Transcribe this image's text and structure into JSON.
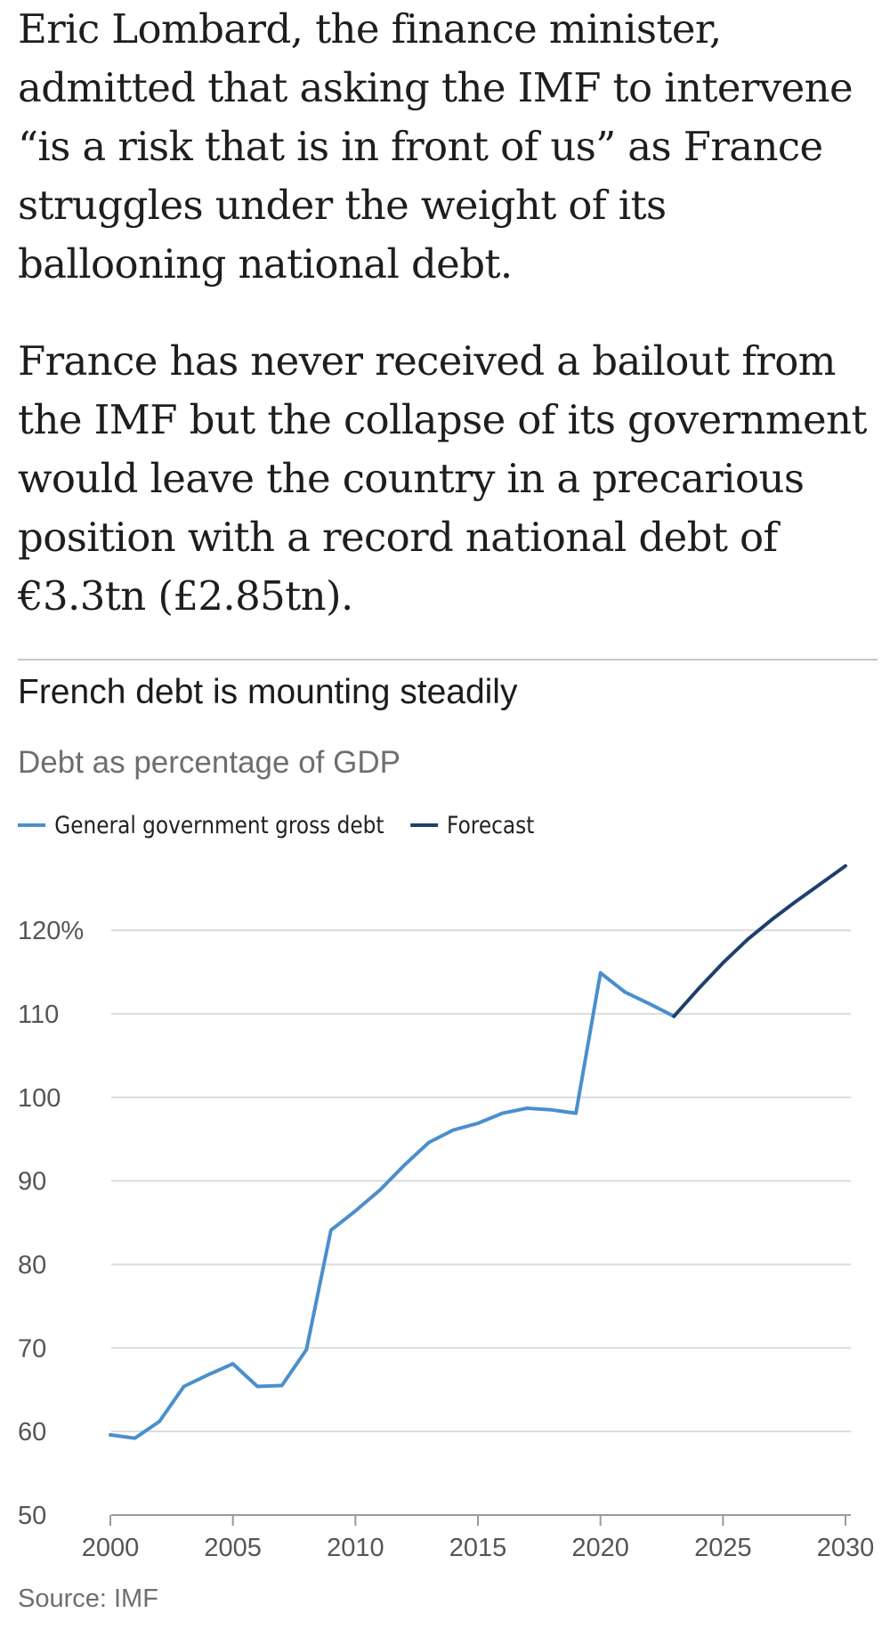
{
  "article": {
    "paragraphs": [
      "Eric Lombard, the finance minister, admitted that asking the IMF to intervene “is a risk that is in front of us” as France struggles under the weight of its ballooning national debt.",
      "France has never received a bailout from the IMF but the collapse of its government would leave the country in a precarious position with a record national debt of €3.3tn (£2.85tn)."
    ]
  },
  "chart_data": {
    "type": "line",
    "title": "French debt is mounting steadily",
    "subtitle": "Debt as percentage of GDP",
    "xlabel": "",
    "ylabel": "",
    "source": "Source: IMF",
    "legend": [
      {
        "name": "General government gross debt",
        "color": "#4a8fce"
      },
      {
        "name": "Forecast",
        "color": "#1e3f6e"
      }
    ],
    "legend_placement": "top-left",
    "grid": true,
    "xlim": [
      2000,
      2030
    ],
    "ylim": [
      50,
      128
    ],
    "x_ticks": [
      {
        "value": 2000,
        "label": "2000"
      },
      {
        "value": 2005,
        "label": "2005"
      },
      {
        "value": 2010,
        "label": "2010"
      },
      {
        "value": 2015,
        "label": "2015"
      },
      {
        "value": 2020,
        "label": "2020"
      },
      {
        "value": 2025,
        "label": "2025"
      },
      {
        "value": 2030,
        "label": "2030"
      }
    ],
    "y_ticks": [
      {
        "value": 50,
        "label": "50"
      },
      {
        "value": 60,
        "label": "60"
      },
      {
        "value": 70,
        "label": "70"
      },
      {
        "value": 80,
        "label": "80"
      },
      {
        "value": 90,
        "label": "90"
      },
      {
        "value": 100,
        "label": "100"
      },
      {
        "value": 110,
        "label": "110"
      },
      {
        "value": 120,
        "label": "120%"
      }
    ],
    "series": [
      {
        "name": "General government gross debt",
        "color": "#4a8fce",
        "x": [
          2000,
          2001,
          2002,
          2003,
          2004,
          2005,
          2006,
          2007,
          2008,
          2009,
          2010,
          2011,
          2012,
          2013,
          2014,
          2015,
          2016,
          2017,
          2018,
          2019,
          2020,
          2021,
          2022,
          2023
        ],
        "y": [
          59.6,
          59.2,
          61.2,
          65.4,
          66.8,
          68.1,
          65.4,
          65.5,
          69.8,
          84.1,
          86.4,
          88.9,
          91.9,
          94.6,
          96.1,
          96.9,
          98.1,
          98.7,
          98.5,
          98.1,
          114.9,
          112.6,
          111.2,
          109.7
        ]
      },
      {
        "name": "Forecast",
        "color": "#1e3f6e",
        "x": [
          2023,
          2024,
          2025,
          2026,
          2027,
          2028,
          2029,
          2030
        ],
        "y": [
          109.7,
          113.0,
          116.1,
          118.9,
          121.3,
          123.5,
          125.6,
          127.7
        ]
      }
    ]
  }
}
